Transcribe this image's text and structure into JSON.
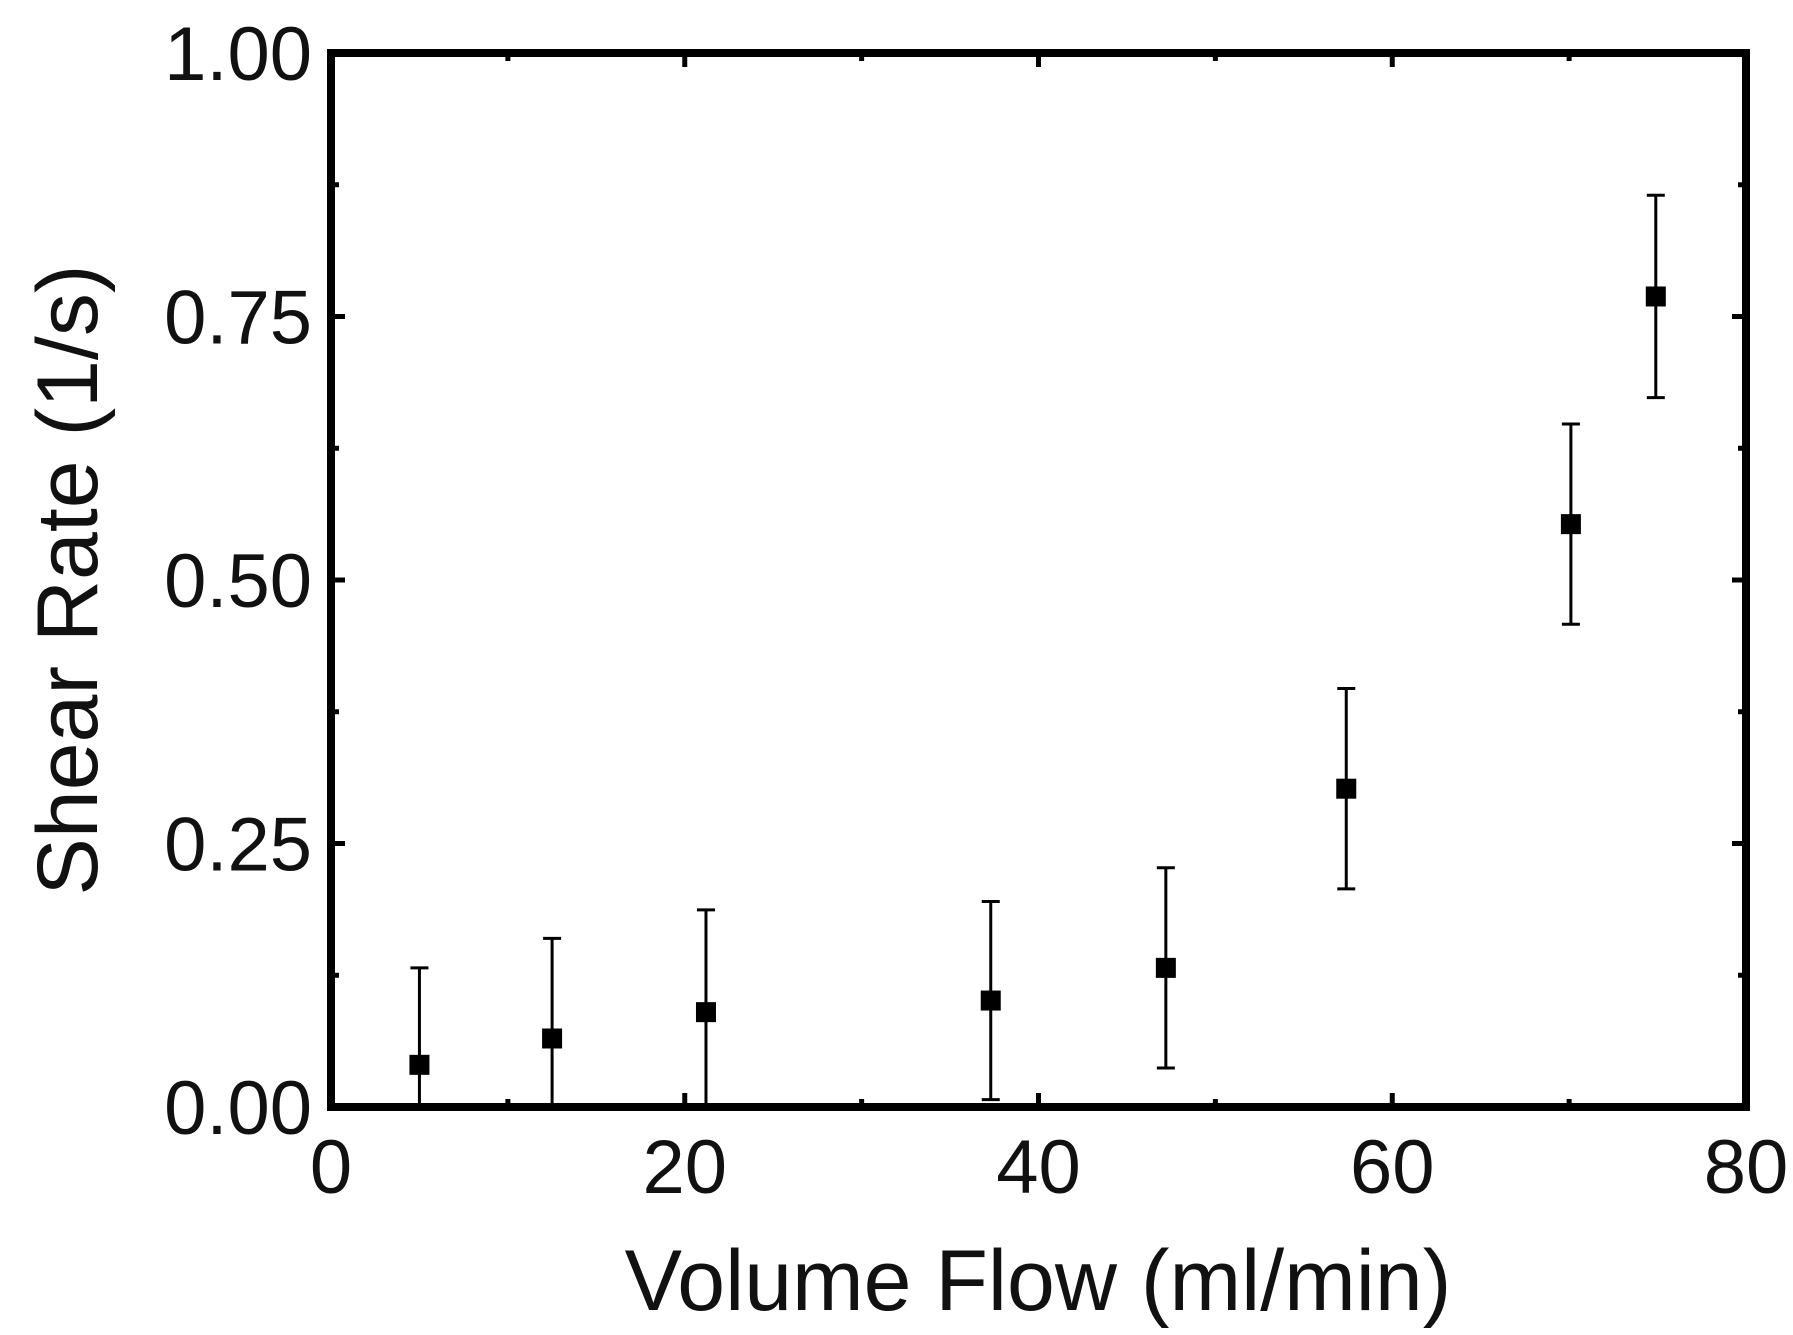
{
  "chart_data": {
    "type": "scatter",
    "title": "",
    "xlabel": "Volume Flow (ml/min)",
    "ylabel": "Shear Rate (1/s)",
    "xlim": [
      0,
      80
    ],
    "ylim": [
      0,
      1
    ],
    "x_ticks": [
      "0",
      "20",
      "40",
      "60",
      "80"
    ],
    "y_ticks": [
      "0.00",
      "0.25",
      "0.50",
      "0.75",
      "1.00"
    ],
    "x_tick_values": [
      0,
      20,
      40,
      60,
      80
    ],
    "y_tick_values": [
      0,
      0.25,
      0.5,
      0.75,
      1.0
    ],
    "x_minor_ticks": [
      10,
      30,
      50,
      70
    ],
    "y_minor_ticks": [
      0.125,
      0.375,
      0.625,
      0.875
    ],
    "grid": false,
    "legend": "none",
    "series": [
      {
        "marker": "square",
        "color": "#000000",
        "x": [
          5,
          12.5,
          21.2,
          37.3,
          47.2,
          57.4,
          70.1,
          74.9
        ],
        "y": [
          0.04,
          0.065,
          0.09,
          0.101,
          0.132,
          0.302,
          0.553,
          0.769
        ],
        "yerr": [
          0.092,
          0.095,
          0.097,
          0.094,
          0.095,
          0.095,
          0.095,
          0.096
        ]
      }
    ]
  }
}
